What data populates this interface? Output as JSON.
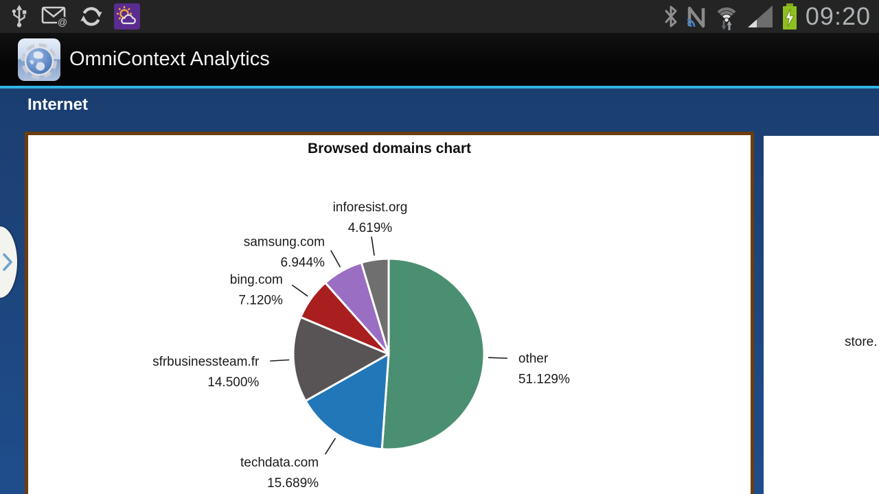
{
  "status_bar": {
    "time": "09:20",
    "left_icons": [
      "usb-icon",
      "email-icon",
      "sync-icon",
      "weather-icon"
    ],
    "right_icons": [
      "bluetooth-icon",
      "nfc-icon",
      "wifi-icon",
      "signal-icon",
      "battery-icon"
    ]
  },
  "app_bar": {
    "title": "OmniContext Analytics"
  },
  "section": {
    "title": "Internet"
  },
  "pager": {
    "next_card_visible_text": "store."
  },
  "chart_data": {
    "type": "pie",
    "title": "Browsed domains chart",
    "direction": "clockwise",
    "start_angle_deg": 0,
    "label_color": "#1b1b1b",
    "slices": [
      {
        "label": "other",
        "value": 51.129,
        "percent_label": "51.129%",
        "color": "#4b8f72"
      },
      {
        "label": "techdata.com",
        "value": 15.689,
        "percent_label": "15.689%",
        "color": "#2277b8"
      },
      {
        "label": "sfrbusinessteam.fr",
        "value": 14.5,
        "percent_label": "14.500%",
        "color": "#585456"
      },
      {
        "label": "bing.com",
        "value": 7.12,
        "percent_label": "7.120%",
        "color": "#a91e1e"
      },
      {
        "label": "samsung.com",
        "value": 6.944,
        "percent_label": "6.944%",
        "color": "#9a6ec2"
      },
      {
        "label": "inforesist.org",
        "value": 4.619,
        "percent_label": "4.619%",
        "color": "#6f6f6f"
      }
    ]
  },
  "colors": {
    "accent_line": "#2fb3e3",
    "content_bg_top": "#1b3e70",
    "content_bg_bottom": "#1f4d8c",
    "card_border": "#6c3d0e",
    "status_bar_bg": "#242424",
    "action_bar_bg": "#050505"
  }
}
